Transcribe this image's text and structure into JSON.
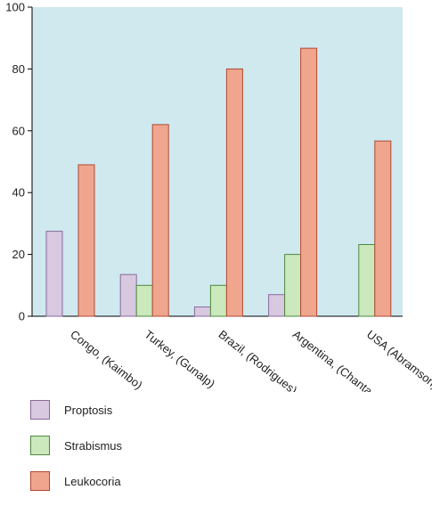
{
  "chart_data": {
    "type": "bar",
    "categories": [
      "Congo, (Kaimbo)",
      "Turkey, (Gunalp)",
      "Brazil, (Rodrigues)",
      "Argentina, (Chantada)",
      "USA (Abramson)"
    ],
    "series": [
      {
        "name": "Proptosis",
        "values": [
          27.5,
          13.5,
          3,
          7,
          0
        ],
        "color": "#d8c8e0",
        "stroke": "#8a6a9a"
      },
      {
        "name": "Strabismus",
        "values": [
          0,
          10,
          10,
          20,
          23.2
        ],
        "color": "#cce8bd",
        "stroke": "#4e8a3e"
      },
      {
        "name": "Leukocoria",
        "values": [
          49,
          62,
          80,
          86.7,
          56.7
        ],
        "color": "#f0a68e",
        "stroke": "#b04830"
      }
    ],
    "ylim": [
      0,
      100
    ],
    "yticks": [
      "0",
      "20",
      "40",
      "60",
      "80",
      "100"
    ],
    "plot_background": "#cfe9ef",
    "grid": false,
    "legend_placement": "bottom-left",
    "title": "",
    "xlabel": "",
    "ylabel": ""
  }
}
